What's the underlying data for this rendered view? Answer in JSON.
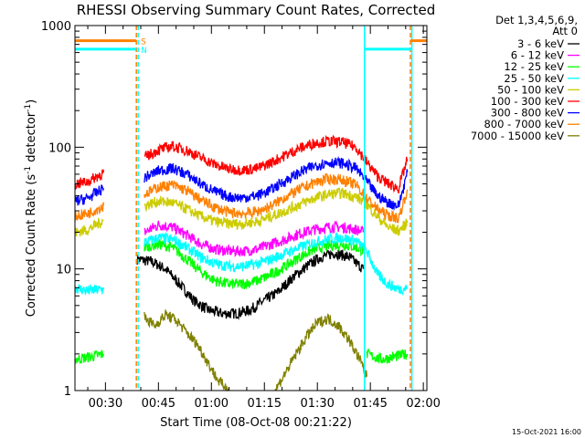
{
  "chart_data": {
    "type": "line",
    "title": "RHESSI Observing Summary Count Rates, Corrected",
    "xlabel": "Start Time (08-Oct-08 00:21:22)",
    "ylabel": "Corrected Count Rate (s⁻¹ detector⁻¹)",
    "ylabel_parts": {
      "main": "Corrected Count Rate (s",
      "sup1": "-1",
      "mid": " detector",
      "sup2": "-1",
      "end": ")"
    },
    "y_scale": "log",
    "ylim": [
      1,
      1000
    ],
    "xlim": [
      "00:21:22",
      "02:01:00"
    ],
    "x_ticks": [
      "00:30",
      "00:45",
      "01:00",
      "01:15",
      "01:30",
      "01:45",
      "02:00"
    ],
    "y_ticks": [
      "1",
      "10",
      "100",
      "1000"
    ],
    "legend_placement": "right",
    "legend_header": [
      "Det 1,3,4,5,6,9,",
      "Att 0"
    ],
    "series": [
      {
        "name": "3 - 6 keV",
        "color": "#000000",
        "segments": [
          [
            [
              "00:39:00",
              12
            ],
            [
              "00:43:00",
              11.5
            ],
            [
              "00:47:00",
              10
            ],
            [
              "00:51:00",
              7.5
            ],
            [
              "00:55:00",
              5.5
            ],
            [
              "00:59:00",
              4.6
            ],
            [
              "01:03:00",
              4.3
            ],
            [
              "01:07:00",
              4.3
            ],
            [
              "01:11:00",
              4.6
            ],
            [
              "01:15:00",
              5.5
            ],
            [
              "01:19:00",
              6.5
            ],
            [
              "01:23:00",
              8.5
            ],
            [
              "01:27:00",
              10.5
            ],
            [
              "01:31:00",
              12.5
            ],
            [
              "01:35:00",
              13.5
            ],
            [
              "01:39:00",
              12.5
            ],
            [
              "01:43:00",
              10
            ]
          ]
        ]
      },
      {
        "name": "6 - 12 keV",
        "color": "#ff00ff",
        "segments": [
          [
            [
              "00:41:00",
              20
            ],
            [
              "00:45:00",
              23
            ],
            [
              "00:49:00",
              22
            ],
            [
              "00:53:00",
              19
            ],
            [
              "00:57:00",
              16
            ],
            [
              "01:01:00",
              14.5
            ],
            [
              "01:05:00",
              14
            ],
            [
              "01:09:00",
              14
            ],
            [
              "01:13:00",
              14.5
            ],
            [
              "01:17:00",
              16
            ],
            [
              "01:21:00",
              17.5
            ],
            [
              "01:25:00",
              19.5
            ],
            [
              "01:29:00",
              21
            ],
            [
              "01:33:00",
              22
            ],
            [
              "01:37:00",
              22
            ],
            [
              "01:41:00",
              21
            ],
            [
              "01:43:00",
              20
            ]
          ]
        ]
      },
      {
        "name": "12 - 25 keV",
        "color": "#00ff00",
        "segments": [
          [
            [
              "00:21:22",
              1.8
            ],
            [
              "00:26:00",
              1.9
            ],
            [
              "00:29:30",
              2.0
            ]
          ],
          [
            [
              "00:41:00",
              15
            ],
            [
              "00:45:00",
              16
            ],
            [
              "00:49:00",
              15
            ],
            [
              "00:53:00",
              12
            ],
            [
              "00:57:00",
              9.5
            ],
            [
              "01:01:00",
              8
            ],
            [
              "01:05:00",
              7.5
            ],
            [
              "01:09:00",
              7.5
            ],
            [
              "01:13:00",
              8
            ],
            [
              "01:17:00",
              9
            ],
            [
              "01:21:00",
              10.5
            ],
            [
              "01:25:00",
              12.5
            ],
            [
              "01:29:00",
              14.5
            ],
            [
              "01:33:00",
              15.5
            ],
            [
              "01:37:00",
              16
            ],
            [
              "01:41:00",
              15
            ],
            [
              "01:43:00",
              14
            ]
          ],
          [
            [
              "01:44:00",
              2.0
            ],
            [
              "01:48:00",
              1.8
            ],
            [
              "01:52:00",
              1.9
            ],
            [
              "01:55:30",
              2.0
            ]
          ]
        ]
      },
      {
        "name": "25 - 50 keV",
        "color": "#00ffff",
        "segments": [
          [
            [
              "00:21:22",
              7
            ],
            [
              "00:25:00",
              6.6
            ],
            [
              "00:29:30",
              6.8
            ]
          ],
          [
            [
              "00:41:00",
              16.5
            ],
            [
              "00:45:00",
              18
            ],
            [
              "00:49:00",
              17.5
            ],
            [
              "00:53:00",
              15
            ],
            [
              "00:57:00",
              12.5
            ],
            [
              "01:01:00",
              11
            ],
            [
              "01:05:00",
              10.5
            ],
            [
              "01:09:00",
              10.5
            ],
            [
              "01:13:00",
              11
            ],
            [
              "01:17:00",
              12
            ],
            [
              "01:21:00",
              13.5
            ],
            [
              "01:25:00",
              15
            ],
            [
              "01:29:00",
              16.5
            ],
            [
              "01:33:00",
              17.5
            ],
            [
              "01:37:00",
              18
            ],
            [
              "01:41:00",
              17
            ],
            [
              "01:44:00",
              14
            ],
            [
              "01:47:00",
              9
            ],
            [
              "01:50:00",
              7.5
            ],
            [
              "01:53:00",
              6.8
            ],
            [
              "01:55:30",
              7
            ]
          ]
        ]
      },
      {
        "name": "50 - 100 keV",
        "color": "#cccc00",
        "segments": [
          [
            [
              "00:21:22",
              20
            ],
            [
              "00:25:00",
              21
            ],
            [
              "00:29:30",
              25
            ]
          ],
          [
            [
              "00:41:00",
              33
            ],
            [
              "00:45:00",
              36
            ],
            [
              "00:49:00",
              35
            ],
            [
              "00:53:00",
              31
            ],
            [
              "00:57:00",
              27
            ],
            [
              "01:01:00",
              24.5
            ],
            [
              "01:05:00",
              23.5
            ],
            [
              "01:09:00",
              23.5
            ],
            [
              "01:13:00",
              24.5
            ],
            [
              "01:17:00",
              27
            ],
            [
              "01:21:00",
              30
            ],
            [
              "01:25:00",
              34
            ],
            [
              "01:29:00",
              38
            ],
            [
              "01:33:00",
              41
            ],
            [
              "01:37:00",
              42
            ],
            [
              "01:41:00",
              39
            ],
            [
              "01:44:00",
              34
            ],
            [
              "01:47:00",
              27
            ],
            [
              "01:50:00",
              22
            ],
            [
              "01:53:00",
              20.5
            ],
            [
              "01:55:30",
              24
            ]
          ]
        ]
      },
      {
        "name": "100 - 300 keV",
        "color": "#ff0000",
        "segments": [
          [
            [
              "00:21:22",
              50
            ],
            [
              "00:25:00",
              52
            ],
            [
              "00:29:30",
              62
            ]
          ],
          [
            [
              "00:41:00",
              82
            ],
            [
              "00:45:00",
              95
            ],
            [
              "00:49:00",
              102
            ],
            [
              "00:53:00",
              94
            ],
            [
              "00:57:00",
              82
            ],
            [
              "01:01:00",
              72
            ],
            [
              "01:05:00",
              66
            ],
            [
              "01:09:00",
              65
            ],
            [
              "01:13:00",
              67
            ],
            [
              "01:17:00",
              75
            ],
            [
              "01:21:00",
              86
            ],
            [
              "01:25:00",
              98
            ],
            [
              "01:29:00",
              108
            ],
            [
              "01:33:00",
              112
            ],
            [
              "01:37:00",
              110
            ],
            [
              "01:41:00",
              100
            ],
            [
              "01:44:00",
              75
            ],
            [
              "01:47:00",
              58
            ],
            [
              "01:50:00",
              50
            ],
            [
              "01:53:00",
              46
            ],
            [
              "01:55:30",
              80
            ]
          ]
        ]
      },
      {
        "name": "300 - 800 keV",
        "color": "#0000ff",
        "segments": [
          [
            [
              "00:21:22",
              36
            ],
            [
              "00:25:00",
              38
            ],
            [
              "00:29:30",
              46
            ]
          ],
          [
            [
              "00:41:00",
              56
            ],
            [
              "00:45:00",
              64
            ],
            [
              "00:49:00",
              67
            ],
            [
              "00:53:00",
              60
            ],
            [
              "00:57:00",
              50
            ],
            [
              "01:01:00",
              43
            ],
            [
              "01:05:00",
              39
            ],
            [
              "01:09:00",
              38.5
            ],
            [
              "01:13:00",
              40
            ],
            [
              "01:17:00",
              45
            ],
            [
              "01:21:00",
              53
            ],
            [
              "01:25:00",
              62
            ],
            [
              "01:29:00",
              70
            ],
            [
              "01:33:00",
              75
            ],
            [
              "01:37:00",
              74
            ],
            [
              "01:41:00",
              67
            ],
            [
              "01:44:00",
              52
            ],
            [
              "01:47:00",
              40
            ],
            [
              "01:50:00",
              35
            ],
            [
              "01:53:00",
              33
            ],
            [
              "01:55:30",
              62
            ]
          ]
        ]
      },
      {
        "name": "800 - 7000 keV",
        "color": "#ff8000",
        "segments": [
          [
            [
              "00:21:22",
              27
            ],
            [
              "00:25:00",
              28.5
            ],
            [
              "00:29:30",
              33
            ]
          ],
          [
            [
              "00:41:00",
              41
            ],
            [
              "00:45:00",
              47
            ],
            [
              "00:49:00",
              49
            ],
            [
              "00:53:00",
              44
            ],
            [
              "00:57:00",
              37
            ],
            [
              "01:01:00",
              32
            ],
            [
              "01:05:00",
              29
            ],
            [
              "01:09:00",
              28.5
            ],
            [
              "01:13:00",
              29.5
            ],
            [
              "01:17:00",
              33
            ],
            [
              "01:21:00",
              39
            ],
            [
              "01:25:00",
              45
            ],
            [
              "01:29:00",
              51
            ],
            [
              "01:33:00",
              55
            ],
            [
              "01:37:00",
              54
            ],
            [
              "01:41:00",
              49
            ],
            [
              "01:44:00",
              38
            ],
            [
              "01:47:00",
              31
            ],
            [
              "01:50:00",
              27.5
            ],
            [
              "01:53:00",
              26
            ],
            [
              "01:55:30",
              45
            ]
          ]
        ]
      },
      {
        "name": "7000 - 15000 keV",
        "color": "#808000",
        "segments": [
          [
            [
              "00:41:00",
              4
            ],
            [
              "00:44:00",
              3.4
            ],
            [
              "00:47:00",
              4.2
            ],
            [
              "00:50:00",
              3.8
            ],
            [
              "00:53:00",
              3.0
            ],
            [
              "00:56:00",
              2.4
            ],
            [
              "00:59:00",
              1.7
            ],
            [
              "01:02:00",
              1.2
            ],
            [
              "01:05:00",
              1.0
            ]
          ],
          [
            [
              "01:18:00",
              1.0
            ],
            [
              "01:21:00",
              1.4
            ],
            [
              "01:24:00",
              2.0
            ],
            [
              "01:27:00",
              2.8
            ],
            [
              "01:30:00",
              3.6
            ],
            [
              "01:33:00",
              3.9
            ],
            [
              "01:36:00",
              3.4
            ],
            [
              "01:39:00",
              2.6
            ],
            [
              "01:42:00",
              1.8
            ],
            [
              "01:44:00",
              1.3
            ]
          ]
        ]
      }
    ],
    "vertical_markers": [
      {
        "time": "00:38:45",
        "color": "#ff8000",
        "style": "dashed"
      },
      {
        "time": "00:38:45",
        "color": "#00ffff",
        "style": "dashed"
      },
      {
        "time": "01:43:20",
        "color": "#00ffff",
        "style": "solid"
      },
      {
        "time": "01:56:20",
        "color": "#ff8000",
        "style": "dashed"
      },
      {
        "time": "01:56:45",
        "color": "#00ffff",
        "style": "solid"
      }
    ],
    "flag_bars": [
      {
        "label": "S",
        "color": "#ff8000",
        "y": 750,
        "ranges": [
          [
            "00:21:22",
            "00:38:45"
          ],
          [
            "01:56:20",
            "02:01:00"
          ]
        ]
      },
      {
        "label": "N",
        "color": "#00ffff",
        "y": 640,
        "ranges": [
          [
            "00:21:22",
            "00:38:45"
          ],
          [
            "01:43:20",
            "01:56:45"
          ]
        ]
      }
    ],
    "footer": "15-Oct-2021 16:00"
  }
}
